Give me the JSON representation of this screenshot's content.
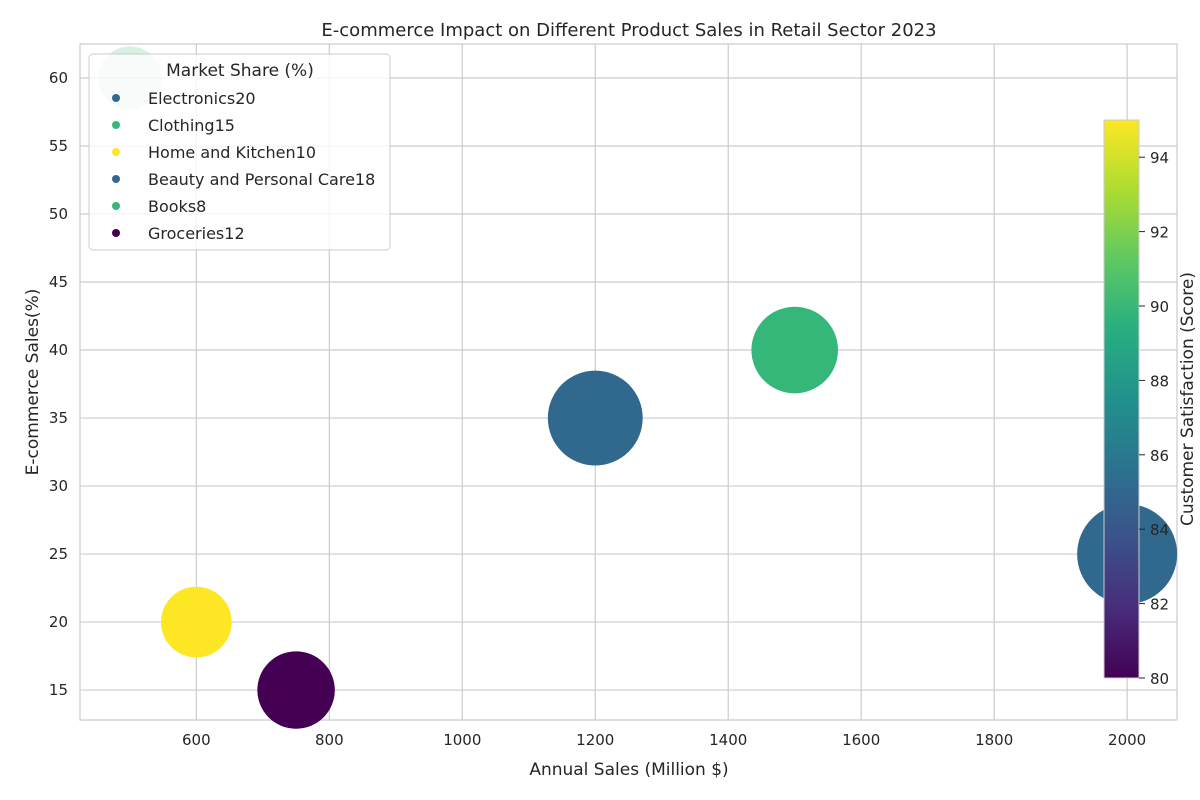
{
  "chart_data": {
    "type": "scatter",
    "title": "E-commerce Impact on Different Product Sales in Retail Sector 2023",
    "xlabel": "Annual Sales (Million $)",
    "ylabel": "E-commerce Sales(%)",
    "xlim": [
      425,
      2075
    ],
    "ylim": [
      12.8,
      62.5
    ],
    "xticks": [
      600,
      800,
      1000,
      1200,
      1400,
      1600,
      1800,
      2000
    ],
    "yticks": [
      15,
      20,
      25,
      30,
      35,
      40,
      45,
      50,
      55,
      60
    ],
    "grid": true,
    "legend": {
      "title": "Market Share (%)",
      "placement": "top-left",
      "entries": [
        {
          "label": "Electronics20",
          "color": "#31688e"
        },
        {
          "label": "Clothing15",
          "color": "#35b779"
        },
        {
          "label": "Home and Kitchen10",
          "color": "#fde725"
        },
        {
          "label": "Beauty and Personal Care18",
          "color": "#31688e"
        },
        {
          "label": "Books8",
          "color": "#35b779"
        },
        {
          "label": "Groceries12",
          "color": "#440154"
        }
      ]
    },
    "series": [
      {
        "category": "Electronics",
        "annual_sales": 2000,
        "ecommerce_pct": 25,
        "market_share": 20,
        "satisfaction": 85,
        "color": "#31688e"
      },
      {
        "category": "Clothing",
        "annual_sales": 1500,
        "ecommerce_pct": 40,
        "market_share": 15,
        "satisfaction": 90,
        "color": "#35b779"
      },
      {
        "category": "Home and Kitchen",
        "annual_sales": 600,
        "ecommerce_pct": 20,
        "market_share": 10,
        "satisfaction": 95,
        "color": "#fde725"
      },
      {
        "category": "Beauty and Personal Care",
        "annual_sales": 1200,
        "ecommerce_pct": 35,
        "market_share": 18,
        "satisfaction": 85,
        "color": "#31688e"
      },
      {
        "category": "Books",
        "annual_sales": 500,
        "ecommerce_pct": 60,
        "market_share": 8,
        "satisfaction": 90,
        "color": "#35b779"
      },
      {
        "category": "Groceries",
        "annual_sales": 750,
        "ecommerce_pct": 15,
        "market_share": 12,
        "satisfaction": 80,
        "color": "#440154"
      }
    ],
    "colorbar": {
      "label": "Customer Satisfaction (Score)",
      "range": [
        80,
        95
      ],
      "ticks": [
        80,
        82,
        84,
        86,
        88,
        90,
        92,
        94
      ],
      "colormap": "viridis"
    }
  }
}
